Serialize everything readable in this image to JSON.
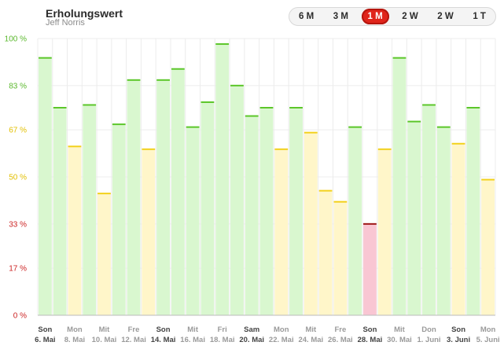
{
  "header": {
    "title": "Erholungswert",
    "subtitle": "Jeff Norris"
  },
  "range_options": [
    {
      "label": "6 M",
      "active": false
    },
    {
      "label": "3 M",
      "active": false
    },
    {
      "label": "1 M",
      "active": true
    },
    {
      "label": "2 W",
      "active": false
    },
    {
      "label": "2 W",
      "active": false
    },
    {
      "label": "1 T",
      "active": false
    }
  ],
  "colors": {
    "green_fill": "#d9f7cf",
    "green_cap": "#5cc62a",
    "yellow_fill": "#fff6c9",
    "yellow_cap": "#f2d11c",
    "red_fill": "#f9c6d3",
    "red_cap": "#9e1717",
    "grid": "#ececec",
    "axis": "#bbbbbb"
  },
  "chart_data": {
    "type": "bar",
    "title": "Erholungswert",
    "ylim": [
      0,
      100
    ],
    "y_ticks": [
      {
        "value": 0,
        "label": "0 %",
        "color": "#cc2424"
      },
      {
        "value": 17,
        "label": "17 %",
        "color": "#cc2424"
      },
      {
        "value": 33,
        "label": "33 %",
        "color": "#cc2424"
      },
      {
        "value": 50,
        "label": "50 %",
        "color": "#e2bf00"
      },
      {
        "value": 67,
        "label": "67 %",
        "color": "#e2bf00"
      },
      {
        "value": 83,
        "label": "83 %",
        "color": "#5ab82c"
      },
      {
        "value": 100,
        "label": "100 %",
        "color": "#5ab82c"
      }
    ],
    "values": [
      93,
      75,
      61,
      76,
      44,
      69,
      85,
      60,
      85,
      89,
      68,
      77,
      98,
      83,
      72,
      75,
      60,
      75,
      66,
      45,
      41,
      68,
      33,
      60,
      93,
      70,
      76,
      68,
      62,
      75,
      49
    ],
    "zones": [
      "green",
      "green",
      "yellow",
      "green",
      "yellow",
      "green",
      "green",
      "yellow",
      "green",
      "green",
      "green",
      "green",
      "green",
      "green",
      "green",
      "green",
      "yellow",
      "green",
      "yellow",
      "yellow",
      "yellow",
      "green",
      "red",
      "yellow",
      "green",
      "green",
      "green",
      "green",
      "yellow",
      "green",
      "yellow"
    ],
    "x_labels": [
      {
        "day": "Son",
        "date": "6. Mai",
        "bold": true
      },
      {
        "day": "Mon",
        "date": "8. Mai",
        "bold": false
      },
      {
        "day": "Mit",
        "date": "10. Mai",
        "bold": false
      },
      {
        "day": "Fre",
        "date": "12. Mai",
        "bold": false
      },
      {
        "day": "Son",
        "date": "14. Mai",
        "bold": true
      },
      {
        "day": "Mit",
        "date": "16. Mai",
        "bold": false
      },
      {
        "day": "Fri",
        "date": "18. Mai",
        "bold": false
      },
      {
        "day": "Sam",
        "date": "20. Mai",
        "bold": true
      },
      {
        "day": "Mon",
        "date": "22. Mai",
        "bold": false
      },
      {
        "day": "Mit",
        "date": "24. Mai",
        "bold": false
      },
      {
        "day": "Fre",
        "date": "26. Mai",
        "bold": false
      },
      {
        "day": "Son",
        "date": "28. Mai",
        "bold": true
      },
      {
        "day": "Mit",
        "date": "30. Mai",
        "bold": false
      },
      {
        "day": "Don",
        "date": "1. Juni",
        "bold": false
      },
      {
        "day": "Son",
        "date": "3. Juni",
        "bold": true
      },
      {
        "day": "Mon",
        "date": "5. Juni",
        "bold": false
      }
    ]
  }
}
